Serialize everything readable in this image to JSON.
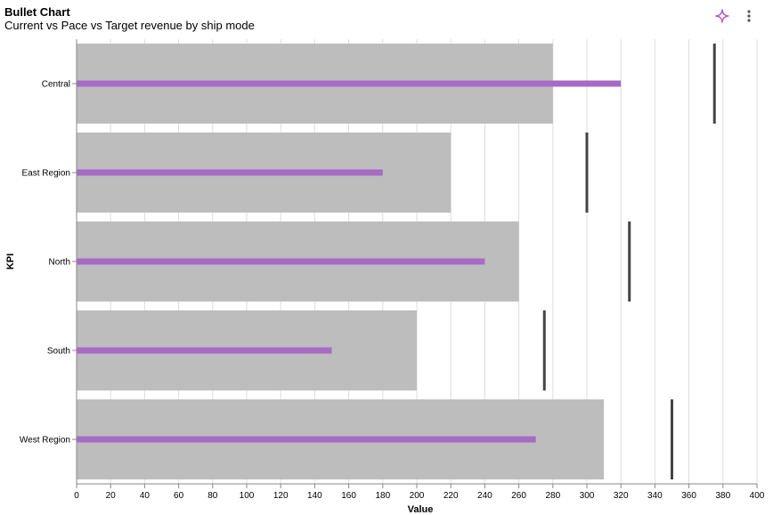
{
  "header": {
    "title": "Bullet Chart",
    "subtitle": "Current vs Pace vs Target revenue by ship mode"
  },
  "toolbar": {
    "icons": [
      "sparkle-icon",
      "more-vertical-icon"
    ]
  },
  "chart_data": {
    "type": "bar",
    "subtype": "bullet",
    "title": "Bullet Chart",
    "subtitle": "Current vs Pace vs Target revenue by ship mode",
    "xlabel": "Value",
    "ylabel": "KPI",
    "xlim": [
      0,
      400
    ],
    "xticks": [
      0,
      20,
      40,
      60,
      80,
      100,
      120,
      140,
      160,
      180,
      200,
      220,
      240,
      260,
      280,
      300,
      320,
      340,
      360,
      380,
      400
    ],
    "grid": true,
    "categories": [
      "Central",
      "East Region",
      "North",
      "South",
      "West Region"
    ],
    "series": [
      {
        "values": [
          280,
          220,
          260,
          200,
          310
        ],
        "color": "#bdbdbd"
      },
      {
        "values": [
          320,
          180,
          240,
          150,
          270
        ],
        "color": "#a66bc4"
      },
      {
        "values": [
          375,
          300,
          325,
          275,
          350
        ],
        "color": "#444444"
      }
    ]
  }
}
